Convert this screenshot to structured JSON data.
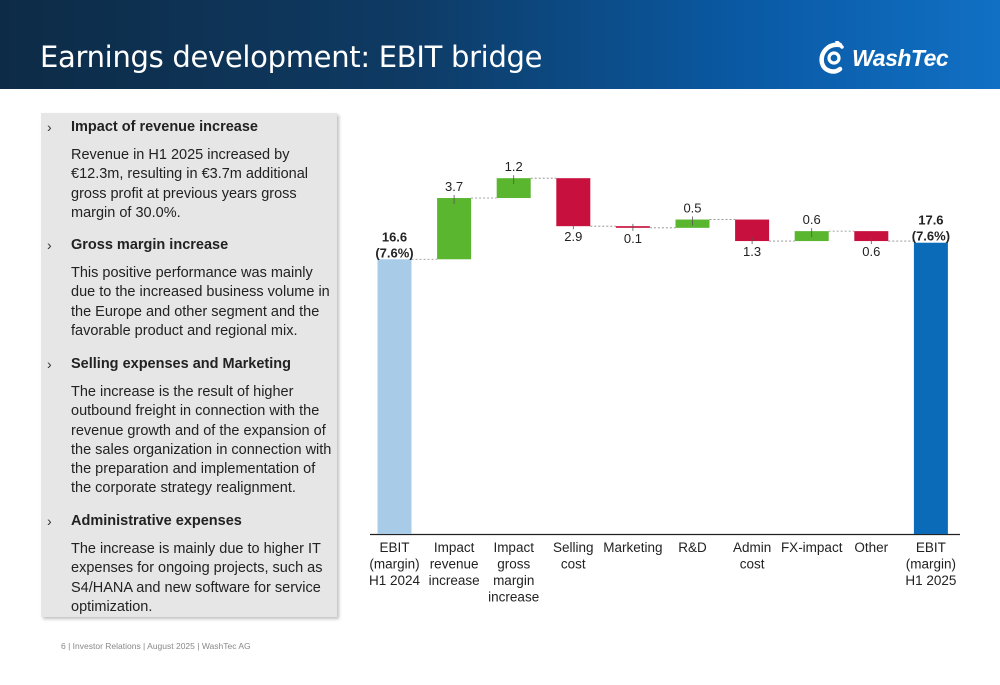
{
  "header": {
    "title": "Earnings development: EBIT bridge",
    "logo_text": "WashTec"
  },
  "sidebar": {
    "sections": [
      {
        "heading": "Impact of revenue increase",
        "text": "Revenue in H1 2025 increased by €12.3m, resulting in €3.7m additional gross profit at previous years gross margin of 30.0%."
      },
      {
        "heading": "Gross margin increase",
        "text": "This positive performance was mainly due to the increased business volume in the Europe and other segment and the favorable product and regional mix."
      },
      {
        "heading": "Selling expenses and Marketing",
        "text": "The increase is the result of higher outbound freight in connection with the revenue growth and of the expansion of the sales organization in connection with the preparation and implementation of the corporate strategy realignment."
      },
      {
        "heading": "Administrative expenses",
        "text": "The increase is mainly due to higher IT expenses for ongoing projects, such as S4/HANA and new software for service optimization."
      }
    ]
  },
  "footer": "6 | Investor Relations | August 2025 | WashTec AG",
  "colors": {
    "start": "#a8cbe8",
    "end": "#0b6bb8",
    "increase": "#5ab52f",
    "decrease": "#c8103e",
    "header_dark": "#0d2b46",
    "header_light": "#1170c4"
  },
  "chart_data": {
    "type": "waterfall",
    "categories": [
      [
        "EBIT",
        "(margin)",
        "H1 2024"
      ],
      [
        "Impact",
        "revenue",
        "increase"
      ],
      [
        "Impact",
        "gross",
        "margin",
        "increase"
      ],
      [
        "Selling",
        "cost"
      ],
      [
        "Marketing"
      ],
      [
        "R&D"
      ],
      [
        "Admin",
        "cost"
      ],
      [
        "FX-impact"
      ],
      [
        "Other"
      ],
      [
        "EBIT",
        "(margin)",
        "H1 2025"
      ]
    ],
    "values": [
      16.6,
      3.7,
      1.2,
      -2.9,
      -0.1,
      0.5,
      -1.3,
      0.6,
      -0.6,
      17.6
    ],
    "kinds": [
      "total",
      "delta",
      "delta",
      "delta",
      "delta",
      "delta",
      "delta",
      "delta",
      "delta",
      "total"
    ],
    "labels": [
      [
        "16.6",
        "(7.6%)"
      ],
      [
        "3.7"
      ],
      [
        "1.2"
      ],
      [
        "2.9"
      ],
      [
        "0.1"
      ],
      [
        "0.5"
      ],
      [
        "1.3"
      ],
      [
        "0.6"
      ],
      [
        "0.6"
      ],
      [
        "17.6",
        "(7.6%)"
      ]
    ]
  }
}
